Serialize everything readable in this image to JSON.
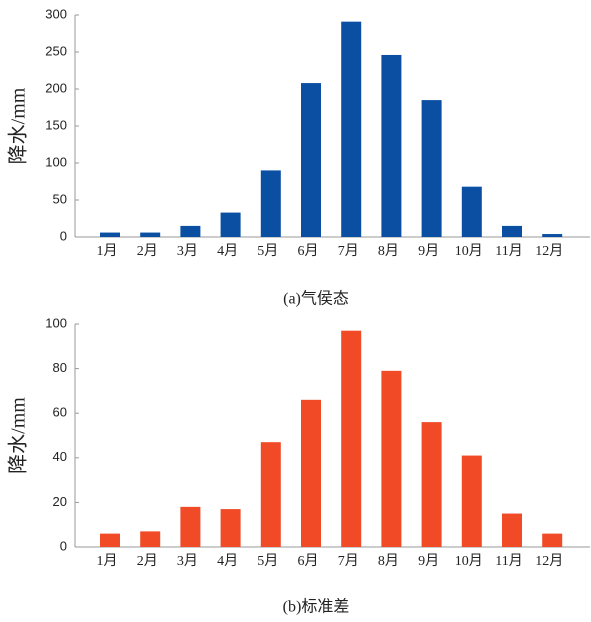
{
  "chart_data": [
    {
      "type": "bar",
      "title": "(a)气侯态",
      "ylabel": "降水/mm",
      "categories": [
        "1月",
        "2月",
        "3月",
        "4月",
        "5月",
        "6月",
        "7月",
        "8月",
        "9月",
        "10月",
        "11月",
        "12月"
      ],
      "values": [
        6,
        6,
        15,
        33,
        90,
        208,
        291,
        246,
        185,
        68,
        15,
        4
      ],
      "color": "#0b4fa3",
      "ylim": [
        0,
        300
      ],
      "yticks": [
        0,
        50,
        100,
        150,
        200,
        250,
        300
      ]
    },
    {
      "type": "bar",
      "title": "(b)标准差",
      "ylabel": "降水/mm",
      "categories": [
        "1月",
        "2月",
        "3月",
        "4月",
        "5月",
        "6月",
        "7月",
        "8月",
        "9月",
        "10月",
        "11月",
        "12月"
      ],
      "values": [
        6,
        7,
        18,
        17,
        47,
        66,
        97,
        79,
        56,
        41,
        15,
        6
      ],
      "color": "#f14a26",
      "ylim": [
        0,
        100
      ],
      "yticks": [
        0,
        20,
        40,
        60,
        80,
        100
      ]
    }
  ]
}
